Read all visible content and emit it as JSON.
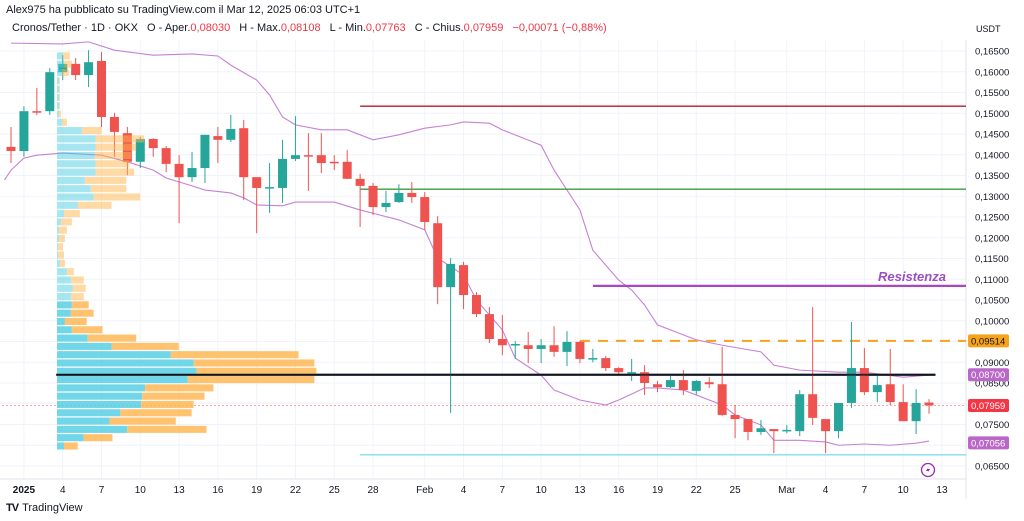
{
  "header": {
    "published": "Alex975 ha pubblicato su TradingView.com il Mar 12, 2025 06:03 UTC+1",
    "symbol": "Cronos/Tether · 1D · OKX",
    "open_label": "O - Aper.",
    "open": "0,08030",
    "high_label": "H - Max.",
    "high": "0,08108",
    "low_label": "L - Min.",
    "low": "0,07763",
    "close_label": "C - Chius.",
    "close": "0,07959",
    "change": "−0,00071 (−0,88%)"
  },
  "footer": {
    "brand": "TradingView",
    "logo": "TV"
  },
  "colors": {
    "up": "#26a69a",
    "down": "#ef5350",
    "band": "#c681d6",
    "vp_up": "#4fcde3",
    "vp_down": "#ffb54d"
  },
  "chart_data": {
    "type": "candlestick",
    "title": "Cronos/Tether · 1D · OKX",
    "currency_label": "USDT",
    "start_date": "2024-12-31",
    "ylim": [
      0.0625,
      0.168
    ],
    "y_ticks": [
      "0,16500",
      "0,16000",
      "0,15500",
      "0,15000",
      "0,14500",
      "0,14000",
      "0,13500",
      "0,13000",
      "0,12500",
      "0,12000",
      "0,11500",
      "0,11000",
      "0,10500",
      "0,10000",
      "0,09000",
      "0,08500",
      "0,07500",
      "0,06500"
    ],
    "y_tick_values": [
      0.165,
      0.16,
      0.155,
      0.15,
      0.145,
      0.14,
      0.135,
      0.13,
      0.125,
      0.12,
      0.115,
      0.11,
      0.105,
      0.1,
      0.09,
      0.085,
      0.075,
      0.065
    ],
    "x_ticks": [
      {
        "label": "2025",
        "day": 1,
        "bold": true
      },
      {
        "label": "4",
        "day": 4
      },
      {
        "label": "7",
        "day": 7
      },
      {
        "label": "10",
        "day": 10
      },
      {
        "label": "13",
        "day": 13
      },
      {
        "label": "16",
        "day": 16
      },
      {
        "label": "19",
        "day": 19
      },
      {
        "label": "22",
        "day": 22
      },
      {
        "label": "25",
        "day": 25
      },
      {
        "label": "28",
        "day": 28
      },
      {
        "label": "Feb",
        "day": 32
      },
      {
        "label": "4",
        "day": 35
      },
      {
        "label": "7",
        "day": 38
      },
      {
        "label": "10",
        "day": 41
      },
      {
        "label": "13",
        "day": 44
      },
      {
        "label": "16",
        "day": 47
      },
      {
        "label": "19",
        "day": 50
      },
      {
        "label": "22",
        "day": 53
      },
      {
        "label": "25",
        "day": 56
      },
      {
        "label": "Mar",
        "day": 60
      },
      {
        "label": "4",
        "day": 63
      },
      {
        "label": "7",
        "day": 66
      },
      {
        "label": "10",
        "day": 69
      },
      {
        "label": "13",
        "day": 72
      }
    ],
    "ohlc": [
      [
        0.1419,
        0.1467,
        0.138,
        0.1409
      ],
      [
        0.1409,
        0.1517,
        0.1395,
        0.1505
      ],
      [
        0.1505,
        0.1561,
        0.1496,
        0.1503
      ],
      [
        0.1505,
        0.1609,
        0.1496,
        0.1599
      ],
      [
        0.1599,
        0.164,
        0.158,
        0.1619
      ],
      [
        0.1619,
        0.1633,
        0.158,
        0.1592
      ],
      [
        0.1592,
        0.1652,
        0.1563,
        0.1623
      ],
      [
        0.1626,
        0.1648,
        0.1467,
        0.1491
      ],
      [
        0.1491,
        0.1501,
        0.1395,
        0.1455
      ],
      [
        0.1452,
        0.1467,
        0.1351,
        0.1383
      ],
      [
        0.1383,
        0.1443,
        0.1368,
        0.1438
      ],
      [
        0.1438,
        0.144,
        0.1395,
        0.1416
      ],
      [
        0.1416,
        0.1421,
        0.1358,
        0.1378
      ],
      [
        0.1378,
        0.1399,
        0.1235,
        0.1346
      ],
      [
        0.1346,
        0.1407,
        0.1334,
        0.1368
      ],
      [
        0.1368,
        0.1448,
        0.1332,
        0.1448
      ],
      [
        0.1445,
        0.1467,
        0.138,
        0.1436
      ],
      [
        0.1436,
        0.1496,
        0.1431,
        0.1462
      ],
      [
        0.1464,
        0.1484,
        0.1291,
        0.1346
      ],
      [
        0.1346,
        0.1346,
        0.1211,
        0.132
      ],
      [
        0.132,
        0.138,
        0.126,
        0.1322
      ],
      [
        0.132,
        0.1436,
        0.1284,
        0.139
      ],
      [
        0.139,
        0.1493,
        0.1385,
        0.1399
      ],
      [
        0.1399,
        0.1452,
        0.1313,
        0.1397
      ],
      [
        0.1399,
        0.1452,
        0.1356,
        0.138
      ],
      [
        0.1383,
        0.1399,
        0.1363,
        0.1382
      ],
      [
        0.1383,
        0.1411,
        0.1342,
        0.1342
      ],
      [
        0.1342,
        0.1354,
        0.1226,
        0.1325
      ],
      [
        0.1325,
        0.1332,
        0.1255,
        0.1274
      ],
      [
        0.1274,
        0.1313,
        0.1262,
        0.1284
      ],
      [
        0.1286,
        0.1329,
        0.1284,
        0.1308
      ],
      [
        0.1308,
        0.1334,
        0.1284,
        0.1298
      ],
      [
        0.1298,
        0.131,
        0.1219,
        0.1238
      ],
      [
        0.1235,
        0.1252,
        0.104,
        0.1081
      ],
      [
        0.1081,
        0.1151,
        0.0778,
        0.1137
      ],
      [
        0.1134,
        0.1142,
        0.1028,
        0.1062
      ],
      [
        0.1062,
        0.1069,
        0.1009,
        0.1016
      ],
      [
        0.1016,
        0.1033,
        0.0946,
        0.0956
      ],
      [
        0.0956,
        0.1014,
        0.0917,
        0.0941
      ],
      [
        0.0943,
        0.0951,
        0.0908,
        0.0944
      ],
      [
        0.0941,
        0.0973,
        0.0898,
        0.0932
      ],
      [
        0.0932,
        0.0956,
        0.0898,
        0.0941
      ],
      [
        0.0941,
        0.0987,
        0.0913,
        0.0925
      ],
      [
        0.0925,
        0.0975,
        0.0891,
        0.0949
      ],
      [
        0.0949,
        0.0951,
        0.0898,
        0.0908
      ],
      [
        0.0909,
        0.0932,
        0.09,
        0.091
      ],
      [
        0.091,
        0.0915,
        0.0879,
        0.0886
      ],
      [
        0.0886,
        0.0888,
        0.0872,
        0.0876
      ],
      [
        0.0875,
        0.0908,
        0.0855,
        0.0876
      ],
      [
        0.0876,
        0.0893,
        0.0821,
        0.085
      ],
      [
        0.0847,
        0.0855,
        0.0828,
        0.084
      ],
      [
        0.084,
        0.0869,
        0.0838,
        0.0857
      ],
      [
        0.0857,
        0.0881,
        0.0821,
        0.0833
      ],
      [
        0.0831,
        0.0857,
        0.0821,
        0.0855
      ],
      [
        0.0852,
        0.0864,
        0.0838,
        0.0847
      ],
      [
        0.0847,
        0.0937,
        0.077,
        0.0773
      ],
      [
        0.0773,
        0.0797,
        0.0717,
        0.0763
      ],
      [
        0.0763,
        0.0763,
        0.0712,
        0.0732
      ],
      [
        0.0732,
        0.0761,
        0.0725,
        0.0741
      ],
      [
        0.0739,
        0.0739,
        0.0681,
        0.0734
      ],
      [
        0.0734,
        0.0749,
        0.0729,
        0.0737
      ],
      [
        0.0734,
        0.0833,
        0.0722,
        0.0823
      ],
      [
        0.0823,
        0.1033,
        0.0749,
        0.0766
      ],
      [
        0.0763,
        0.0763,
        0.0681,
        0.0734
      ],
      [
        0.0734,
        0.0802,
        0.0717,
        0.0802
      ],
      [
        0.0802,
        0.0997,
        0.079,
        0.0886
      ],
      [
        0.0886,
        0.0934,
        0.0821,
        0.0828
      ],
      [
        0.0828,
        0.0869,
        0.0804,
        0.0845
      ],
      [
        0.0847,
        0.0932,
        0.0797,
        0.0804
      ],
      [
        0.0804,
        0.0847,
        0.0758,
        0.0758
      ],
      [
        0.0758,
        0.0835,
        0.0727,
        0.0802
      ],
      [
        0.0803,
        0.0811,
        0.0776,
        0.0796
      ]
    ],
    "bollinger_upper": [
      [
        0,
        0.1669
      ],
      [
        4,
        0.1667
      ],
      [
        6,
        0.1672
      ],
      [
        8,
        0.1652
      ],
      [
        11,
        0.164
      ],
      [
        14,
        0.1643
      ],
      [
        16,
        0.1638
      ],
      [
        17,
        0.1616
      ],
      [
        19,
        0.158
      ],
      [
        20,
        0.1544
      ],
      [
        21,
        0.1491
      ],
      [
        22,
        0.1472
      ],
      [
        24,
        0.146
      ],
      [
        26,
        0.146
      ],
      [
        28,
        0.1436
      ],
      [
        30,
        0.1448
      ],
      [
        32,
        0.1464
      ],
      [
        34,
        0.1472
      ],
      [
        35,
        0.1479
      ],
      [
        37,
        0.1476
      ],
      [
        38,
        0.146
      ],
      [
        41,
        0.1423
      ],
      [
        42,
        0.1363
      ],
      [
        44,
        0.1267
      ],
      [
        45,
        0.117
      ],
      [
        47,
        0.1098
      ],
      [
        48,
        0.1074
      ],
      [
        49,
        0.1038
      ],
      [
        50,
        0.099
      ],
      [
        52,
        0.0966
      ],
      [
        53,
        0.0954
      ],
      [
        55,
        0.0941
      ],
      [
        58,
        0.0925
      ],
      [
        59,
        0.0893
      ],
      [
        61,
        0.0881
      ],
      [
        64,
        0.0876
      ],
      [
        66,
        0.0876
      ],
      [
        69,
        0.0864
      ],
      [
        71,
        0.0869
      ]
    ],
    "bollinger_lower": [
      [
        -0.5,
        0.1339
      ],
      [
        0,
        0.1363
      ],
      [
        1,
        0.1392
      ],
      [
        2,
        0.1399
      ],
      [
        4,
        0.1404
      ],
      [
        7,
        0.1399
      ],
      [
        9,
        0.1383
      ],
      [
        11,
        0.1363
      ],
      [
        12,
        0.1344
      ],
      [
        14,
        0.1325
      ],
      [
        15,
        0.1315
      ],
      [
        17,
        0.1308
      ],
      [
        18,
        0.1296
      ],
      [
        19,
        0.1279
      ],
      [
        21,
        0.1277
      ],
      [
        22,
        0.1286
      ],
      [
        25,
        0.1286
      ],
      [
        27,
        0.1267
      ],
      [
        30,
        0.1243
      ],
      [
        32,
        0.1219
      ],
      [
        33,
        0.1151
      ],
      [
        35,
        0.111
      ],
      [
        36,
        0.105
      ],
      [
        38,
        0.0978
      ],
      [
        39,
        0.091
      ],
      [
        41,
        0.0869
      ],
      [
        42,
        0.0833
      ],
      [
        44,
        0.0809
      ],
      [
        46,
        0.0797
      ],
      [
        47,
        0.0809
      ],
      [
        49,
        0.0838
      ],
      [
        50,
        0.0838
      ],
      [
        52,
        0.0833
      ],
      [
        53,
        0.0821
      ],
      [
        55,
        0.0797
      ],
      [
        56,
        0.0773
      ],
      [
        58,
        0.0749
      ],
      [
        59,
        0.0712
      ],
      [
        61,
        0.0712
      ],
      [
        63,
        0.0708
      ],
      [
        64,
        0.07
      ],
      [
        66,
        0.0703
      ],
      [
        68,
        0.07
      ],
      [
        70,
        0.0705
      ],
      [
        71,
        0.071
      ]
    ],
    "volume_profile": {
      "top_price": 0.1648,
      "bucket_size": 0.002,
      "value_area_from_row": 30,
      "rows_up_down": [
        [
          6,
          7
        ],
        [
          7,
          8
        ],
        [
          5,
          7
        ],
        [
          2,
          1
        ],
        [
          2,
          1
        ],
        [
          2,
          1
        ],
        [
          2,
          1
        ],
        [
          2,
          2
        ],
        [
          5,
          5
        ],
        [
          25,
          20
        ],
        [
          39,
          49
        ],
        [
          39,
          41
        ],
        [
          38,
          37
        ],
        [
          39,
          34
        ],
        [
          39,
          39
        ],
        [
          28,
          42
        ],
        [
          34,
          36
        ],
        [
          37,
          47
        ],
        [
          21,
          34
        ],
        [
          7,
          16
        ],
        [
          4,
          11
        ],
        [
          2,
          8
        ],
        [
          2,
          6
        ],
        [
          1,
          5
        ],
        [
          1,
          6
        ],
        [
          3,
          5
        ],
        [
          10,
          7
        ],
        [
          14,
          13
        ],
        [
          16,
          13
        ],
        [
          14,
          13
        ],
        [
          15,
          17
        ],
        [
          14,
          23
        ],
        [
          8,
          22
        ],
        [
          15,
          31
        ],
        [
          31,
          49
        ],
        [
          55,
          68
        ],
        [
          115,
          129
        ],
        [
          138,
          122
        ],
        [
          141,
          121
        ],
        [
          132,
          128
        ],
        [
          89,
          69
        ],
        [
          86,
          63
        ],
        [
          85,
          53
        ],
        [
          64,
          72
        ],
        [
          53,
          67
        ],
        [
          71,
          80
        ],
        [
          27,
          29
        ],
        [
          7,
          14
        ]
      ]
    },
    "levels": [
      {
        "name": "red-resistance-line",
        "price": 0.1517,
        "color": "#b71c2c",
        "from_day": 27,
        "style": "solid",
        "width": 1.3
      },
      {
        "name": "green-level-line",
        "price": 0.1317,
        "color": "#3b9c3f",
        "from_day": 27,
        "style": "solid",
        "width": 1.3
      },
      {
        "name": "resistenza-line",
        "price": 0.1084,
        "color": "#ab47bc",
        "from_day": 45,
        "style": "solid",
        "width": 2.2
      },
      {
        "name": "orange-dashed-line",
        "price": 0.09514,
        "color": "#f7a21b",
        "from_day": 44,
        "style": "dashed",
        "width": 2
      },
      {
        "name": "poc-black-line",
        "price": 0.087,
        "color": "#131722",
        "from_day": 3.5,
        "to_day": 71.5,
        "style": "solid",
        "width": 2
      },
      {
        "name": "support-cyan-line",
        "price": 0.0677,
        "color": "#80deea",
        "from_day": 27,
        "style": "solid",
        "width": 1.3
      },
      {
        "name": "last-price-line",
        "price": 0.07959,
        "color": "#f7a1a8",
        "from_day": -1,
        "style": "dotted",
        "width": 1
      }
    ],
    "annotation": {
      "text": "Resistenza",
      "price": 0.1084,
      "color": "#9c4fc4"
    },
    "price_badges": [
      {
        "label": "0,09514",
        "price": 0.09514,
        "color": "#f7a21b",
        "text": "#131722"
      },
      {
        "label": "0,08700",
        "price": 0.087,
        "color": "#ba68c8",
        "text": "#ffffff"
      },
      {
        "label": "0,07959",
        "price": 0.07959,
        "color": "#f23645",
        "text": "#ffffff"
      },
      {
        "label": "0,07056",
        "price": 0.07056,
        "color": "#ba68c8",
        "text": "#ffffff"
      }
    ]
  }
}
